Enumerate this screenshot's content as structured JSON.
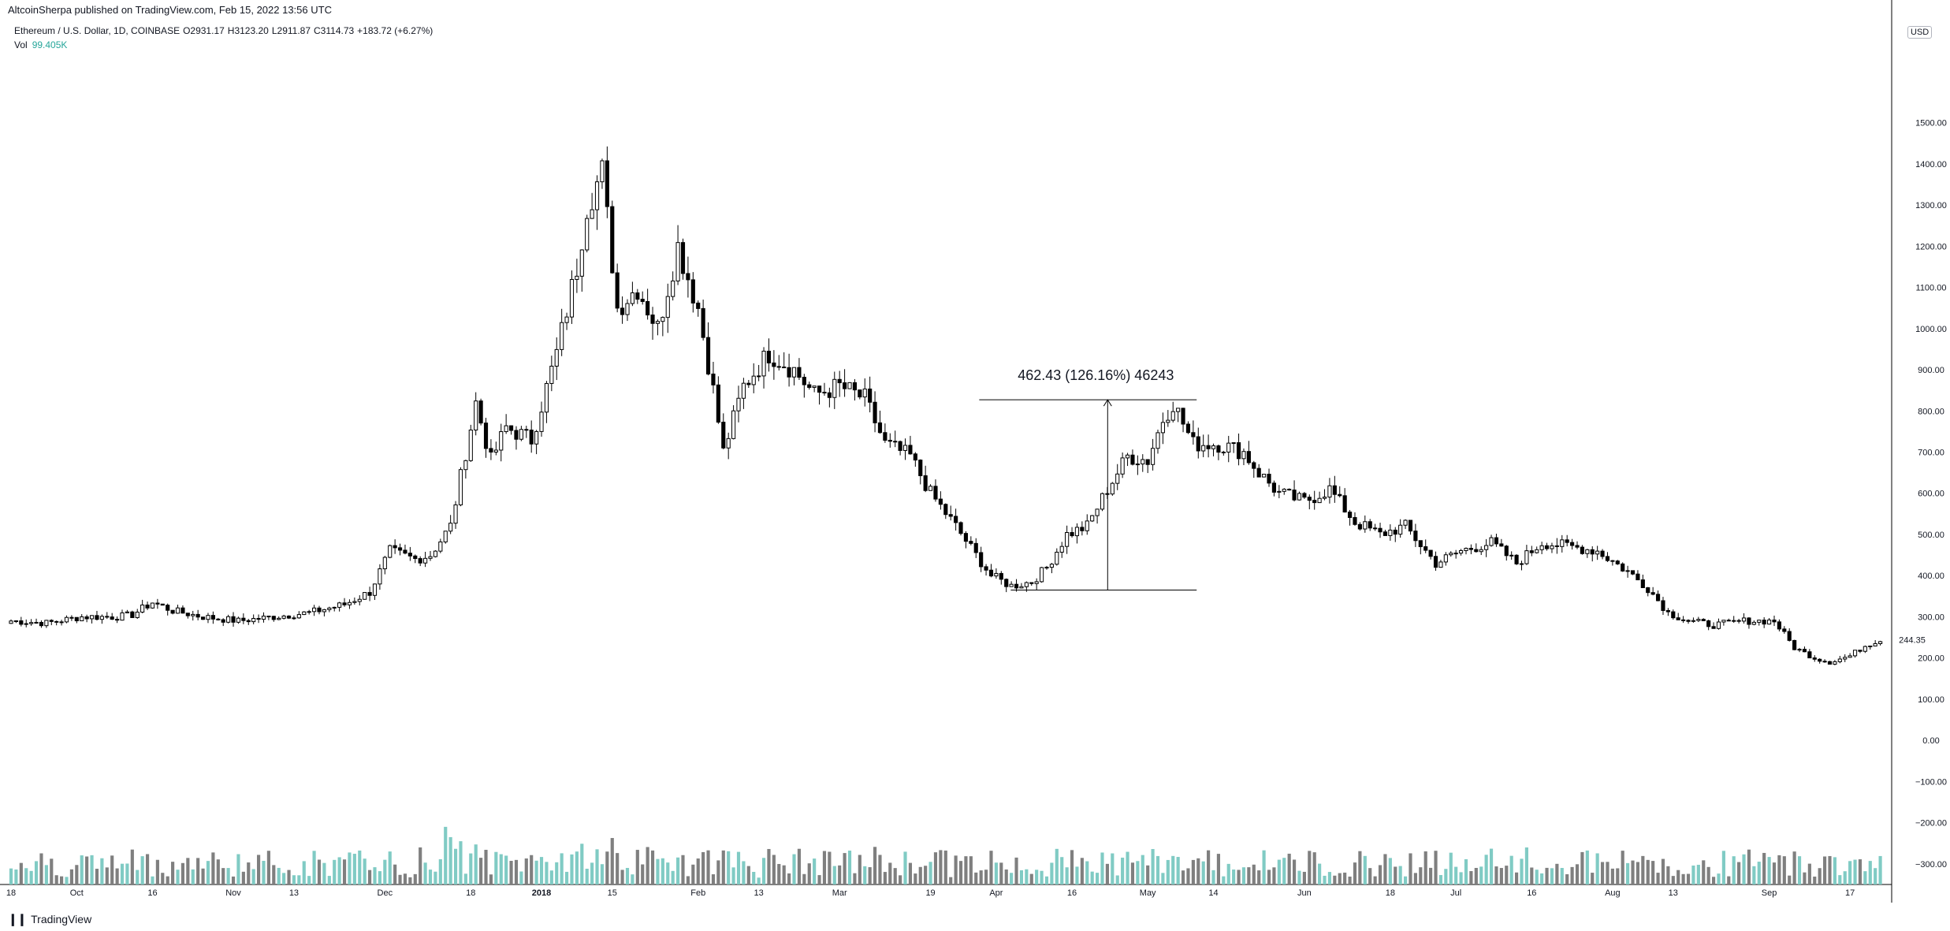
{
  "header": {
    "published": "AltcoinSherpa published on TradingView.com, Feb 15, 2022 13:56 UTC",
    "symbol": "Ethereum / U.S. Dollar, 1D, COINBASE",
    "open": "O2931.17",
    "high": "H3123.20",
    "low": "L2911.87",
    "close": "C3114.73",
    "change": "+183.72 (+6.27%)",
    "vol_label": "Vol",
    "vol_value": "99.405K"
  },
  "price_scale": {
    "currency": "USD",
    "last_price": "244.35"
  },
  "footer": {
    "brand": "TradingView"
  },
  "colors": {
    "up_body": "#ffffff",
    "down_body": "#000000",
    "wick": "#000000",
    "vol_up": "#80cbc4",
    "vol_down": "#7f7f7f",
    "badge": "#131722"
  },
  "chart_data": {
    "type": "candlestick",
    "ylim": [
      -350,
      1750
    ],
    "yticks": [
      1500,
      1400,
      1300,
      1200,
      1100,
      1000,
      900,
      800,
      700,
      600,
      500,
      400,
      300,
      200,
      100,
      0,
      -100,
      -200,
      -300
    ],
    "ytick_labels": [
      "1500.00",
      "1400.00",
      "1300.00",
      "1200.00",
      "1100.00",
      "1000.00",
      "900.00",
      "800.00",
      "700.00",
      "600.00",
      "500.00",
      "400.00",
      "300.00",
      "200.00",
      "100.00",
      "0.00",
      "−100.00",
      "−200.00",
      "−300.00"
    ],
    "xlim": [
      "2017-09-18",
      "2018-09-24"
    ],
    "xtick_labels": [
      {
        "date": "2017-09-18",
        "label": "18"
      },
      {
        "date": "2017-10-01",
        "label": "Oct"
      },
      {
        "date": "2017-10-16",
        "label": "16"
      },
      {
        "date": "2017-11-01",
        "label": "Nov"
      },
      {
        "date": "2017-11-13",
        "label": "13"
      },
      {
        "date": "2017-12-01",
        "label": "Dec"
      },
      {
        "date": "2017-12-18",
        "label": "18"
      },
      {
        "date": "2018-01-01",
        "label": "2018"
      },
      {
        "date": "2018-01-15",
        "label": "15"
      },
      {
        "date": "2018-02-01",
        "label": "Feb"
      },
      {
        "date": "2018-02-13",
        "label": "13"
      },
      {
        "date": "2018-03-01",
        "label": "Mar"
      },
      {
        "date": "2018-03-19",
        "label": "19"
      },
      {
        "date": "2018-04-01",
        "label": "Apr"
      },
      {
        "date": "2018-04-16",
        "label": "16"
      },
      {
        "date": "2018-05-01",
        "label": "May"
      },
      {
        "date": "2018-05-14",
        "label": "14"
      },
      {
        "date": "2018-06-01",
        "label": "Jun"
      },
      {
        "date": "2018-06-18",
        "label": "18"
      },
      {
        "date": "2018-07-01",
        "label": "Jul"
      },
      {
        "date": "2018-07-16",
        "label": "16"
      },
      {
        "date": "2018-08-01",
        "label": "Aug"
      },
      {
        "date": "2018-08-13",
        "label": "13"
      },
      {
        "date": "2018-09-01",
        "label": "Sep"
      },
      {
        "date": "2018-09-17",
        "label": "17"
      }
    ],
    "close_path": [
      [
        "2017-09-18",
        290
      ],
      [
        "2017-09-25",
        285
      ],
      [
        "2017-10-02",
        300
      ],
      [
        "2017-10-09",
        300
      ],
      [
        "2017-10-12",
        305
      ],
      [
        "2017-10-16",
        335
      ],
      [
        "2017-10-20",
        315
      ],
      [
        "2017-10-26",
        300
      ],
      [
        "2017-11-02",
        290
      ],
      [
        "2017-11-09",
        300
      ],
      [
        "2017-11-16",
        310
      ],
      [
        "2017-11-23",
        330
      ],
      [
        "2017-11-28",
        360
      ],
      [
        "2017-12-02",
        460
      ],
      [
        "2017-12-07",
        440
      ],
      [
        "2017-12-10",
        450
      ],
      [
        "2017-12-14",
        520
      ],
      [
        "2017-12-17",
        700
      ],
      [
        "2017-12-19",
        820
      ],
      [
        "2017-12-22",
        680
      ],
      [
        "2017-12-25",
        760
      ],
      [
        "2017-12-30",
        730
      ],
      [
        "2018-01-04",
        940
      ],
      [
        "2018-01-08",
        1150
      ],
      [
        "2018-01-10",
        1300
      ],
      [
        "2018-01-13",
        1380
      ],
      [
        "2018-01-16",
        1050
      ],
      [
        "2018-01-20",
        1100
      ],
      [
        "2018-01-24",
        1000
      ],
      [
        "2018-01-28",
        1200
      ],
      [
        "2018-02-01",
        1050
      ],
      [
        "2018-02-04",
        850
      ],
      [
        "2018-02-06",
        700
      ],
      [
        "2018-02-10",
        860
      ],
      [
        "2018-02-15",
        940
      ],
      [
        "2018-02-20",
        900
      ],
      [
        "2018-02-24",
        840
      ],
      [
        "2018-03-01",
        860
      ],
      [
        "2018-03-06",
        830
      ],
      [
        "2018-03-10",
        720
      ],
      [
        "2018-03-15",
        690
      ],
      [
        "2018-03-19",
        600
      ],
      [
        "2018-03-24",
        520
      ],
      [
        "2018-03-28",
        450
      ],
      [
        "2018-03-31",
        400
      ],
      [
        "2018-04-04",
        375
      ],
      [
        "2018-04-08",
        385
      ],
      [
        "2018-04-11",
        420
      ],
      [
        "2018-04-15",
        500
      ],
      [
        "2018-04-19",
        520
      ],
      [
        "2018-04-23",
        610
      ],
      [
        "2018-04-27",
        690
      ],
      [
        "2018-05-01",
        680
      ],
      [
        "2018-05-04",
        780
      ],
      [
        "2018-05-06",
        820
      ],
      [
        "2018-05-10",
        720
      ],
      [
        "2018-05-15",
        720
      ],
      [
        "2018-05-20",
        700
      ],
      [
        "2018-05-23",
        650
      ],
      [
        "2018-05-27",
        600
      ],
      [
        "2018-06-01",
        580
      ],
      [
        "2018-06-06",
        610
      ],
      [
        "2018-06-11",
        530
      ],
      [
        "2018-06-16",
        500
      ],
      [
        "2018-06-21",
        520
      ],
      [
        "2018-06-27",
        430
      ],
      [
        "2018-07-02",
        460
      ],
      [
        "2018-07-08",
        480
      ],
      [
        "2018-07-13",
        430
      ],
      [
        "2018-07-18",
        480
      ],
      [
        "2018-07-24",
        470
      ],
      [
        "2018-07-29",
        460
      ],
      [
        "2018-08-04",
        410
      ],
      [
        "2018-08-08",
        370
      ],
      [
        "2018-08-12",
        310
      ],
      [
        "2018-08-16",
        290
      ],
      [
        "2018-08-21",
        280
      ],
      [
        "2018-08-27",
        290
      ],
      [
        "2018-09-02",
        290
      ],
      [
        "2018-09-06",
        225
      ],
      [
        "2018-09-10",
        200
      ],
      [
        "2018-09-13",
        190
      ],
      [
        "2018-09-17",
        205
      ],
      [
        "2018-09-20",
        230
      ],
      [
        "2018-09-23",
        245
      ]
    ],
    "volume_panel_baseline": -350,
    "volume_spikes": [
      {
        "date": "2017-12-13",
        "value": -210
      },
      {
        "date": "2017-12-14",
        "value": -235
      },
      {
        "date": "2017-12-08",
        "value": -260
      },
      {
        "date": "2017-12-01",
        "value": -290
      },
      {
        "date": "2018-03-19",
        "value": -295
      },
      {
        "date": "2018-08-14",
        "value": -315
      }
    ],
    "annotation": {
      "label": "462.43 (126.16%) 46243",
      "start_date": "2018-04-07",
      "start_price": 365,
      "end_date": "2018-05-06",
      "end_price": 827
    }
  }
}
